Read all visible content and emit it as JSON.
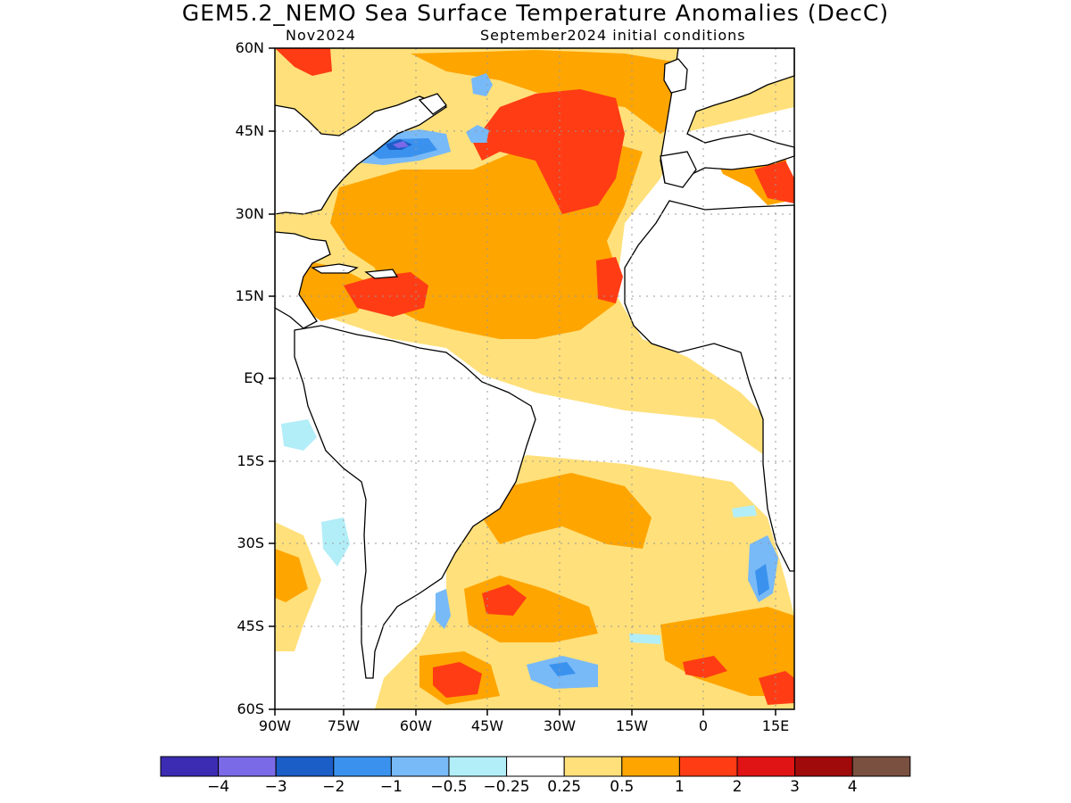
{
  "title": "GEM5.2_NEMO Sea Surface Temperature Anomalies (DecC)",
  "subtitle_left": "Nov2024",
  "subtitle_right": "September2024 initial conditions",
  "map": {
    "lat_labels": [
      "60N",
      "45N",
      "30N",
      "15N",
      "EQ",
      "15S",
      "30S",
      "45S",
      "60S"
    ],
    "lon_labels": [
      "90W",
      "75W",
      "60W",
      "45W",
      "30W",
      "15W",
      "0",
      "15E"
    ],
    "extent": {
      "lon": [
        -90,
        18
      ],
      "lat": [
        -60,
        60
      ]
    }
  },
  "colorbar": {
    "colors": [
      "#3c2cb4",
      "#7b6ae8",
      "#1c5ec8",
      "#3a92ee",
      "#78b9f8",
      "#b2eef8",
      "#ffffff",
      "#ffe07a",
      "#ffa500",
      "#ff3c14",
      "#e01414",
      "#a00a0a",
      "#7a5040"
    ],
    "labels": [
      "−4",
      "−3",
      "−2",
      "−1",
      "−0.5",
      "−0.25",
      "0.25",
      "0.5",
      "1",
      "2",
      "3",
      "4"
    ]
  },
  "colors": {
    "land": "#ffffff",
    "coast": "#000000",
    "grid": "#999999"
  }
}
